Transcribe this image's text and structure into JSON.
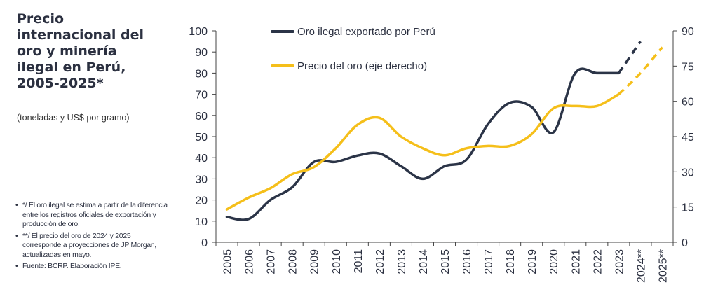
{
  "title": "Precio internacional del oro y minería ilegal en Perú, 2005-2025*",
  "subtitle": "(toneladas y US$ por gramo)",
  "notes": [
    "*/ El oro ilegal se estima a partir de la diferencia entre los registros oficiales de exportación y producción de oro.",
    "**/ El precio del oro de 2024 y 2025 corresponde a proyecciones de JP Morgan, actualizadas en mayo.",
    "Fuente: BCRP. Elaboración IPE."
  ],
  "chart_data": {
    "type": "line",
    "categories": [
      "2005",
      "2006",
      "2007",
      "2008",
      "2009",
      "2010",
      "2011",
      "2012",
      "2013",
      "2014",
      "2015",
      "2016",
      "2017",
      "2018",
      "2019",
      "2020",
      "2021",
      "2022",
      "2023",
      "2024**",
      "2025**"
    ],
    "y_left": {
      "lim": [
        0,
        100
      ],
      "ticks": [
        "0",
        "10",
        "20",
        "30",
        "40",
        "50",
        "60",
        "70",
        "80",
        "90",
        "100"
      ]
    },
    "y_right": {
      "lim": [
        0,
        90
      ],
      "ticks": [
        "0",
        "15",
        "30",
        "45",
        "60",
        "75",
        "90"
      ]
    },
    "series": [
      {
        "name": "Oro ilegal exportado por Perú",
        "axis": "left",
        "color": "#2b3447",
        "values": [
          12,
          11,
          20,
          26,
          38,
          38,
          41,
          42,
          36,
          30,
          36,
          39,
          56,
          66,
          64,
          52,
          80,
          80,
          80,
          95,
          null
        ],
        "projected_from_index": 18
      },
      {
        "name": "Precio del oro (eje derecho)",
        "axis": "right",
        "color": "#f5bf1a",
        "values": [
          14,
          19,
          23,
          29,
          32,
          40,
          50,
          53,
          45,
          40,
          37,
          40,
          41,
          41,
          46,
          57,
          58,
          58,
          63,
          72,
          83
        ],
        "projected_from_index": 18
      }
    ]
  }
}
